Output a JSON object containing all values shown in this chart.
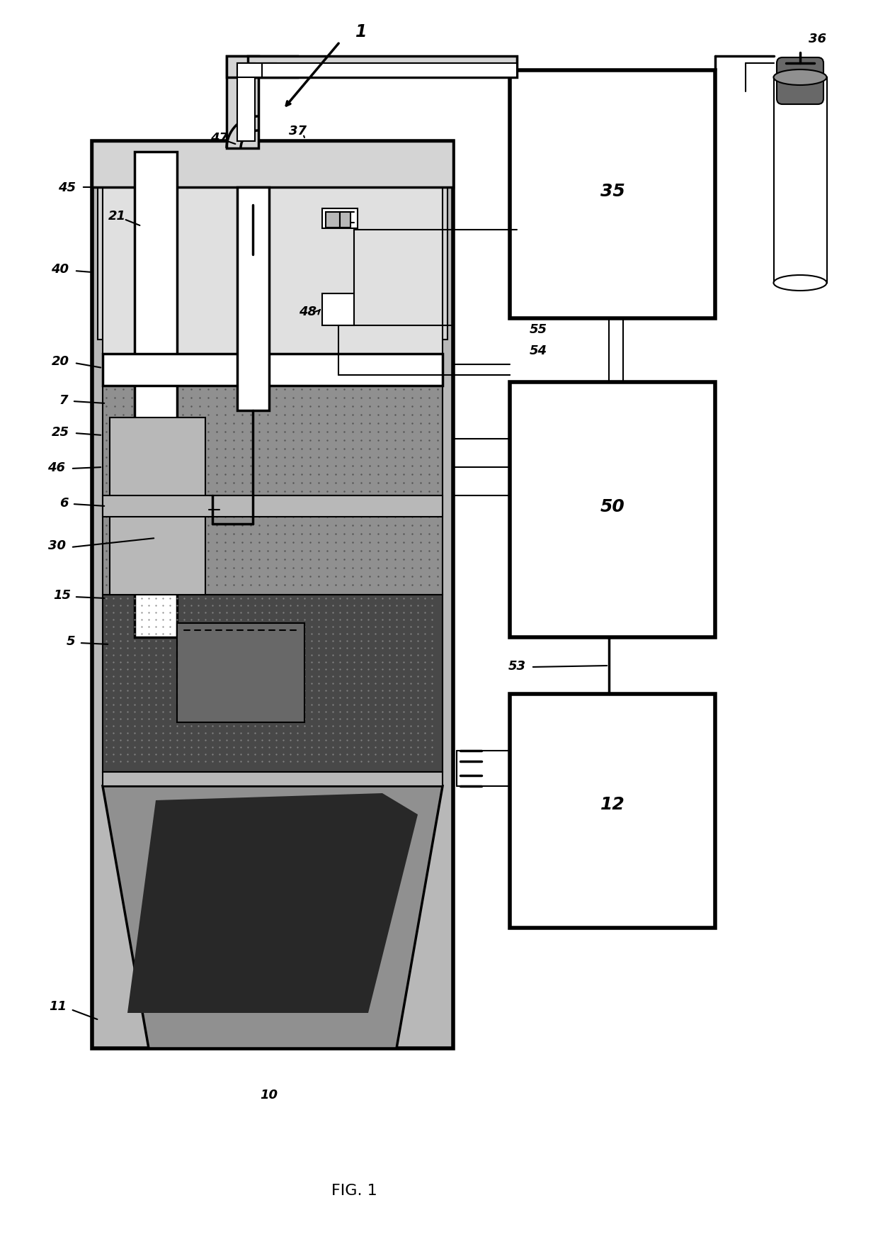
{
  "bg_color": "#ffffff",
  "fig_label": "FIG. 1",
  "gray_outer": "#c8c8c8",
  "gray_mid": "#b0b0b0",
  "gray_inner": "#989898",
  "gray_dark": "#686868",
  "gray_vdark": "#404040",
  "gray_melt": "#282828",
  "white": "#ffffff",
  "black": "#000000"
}
